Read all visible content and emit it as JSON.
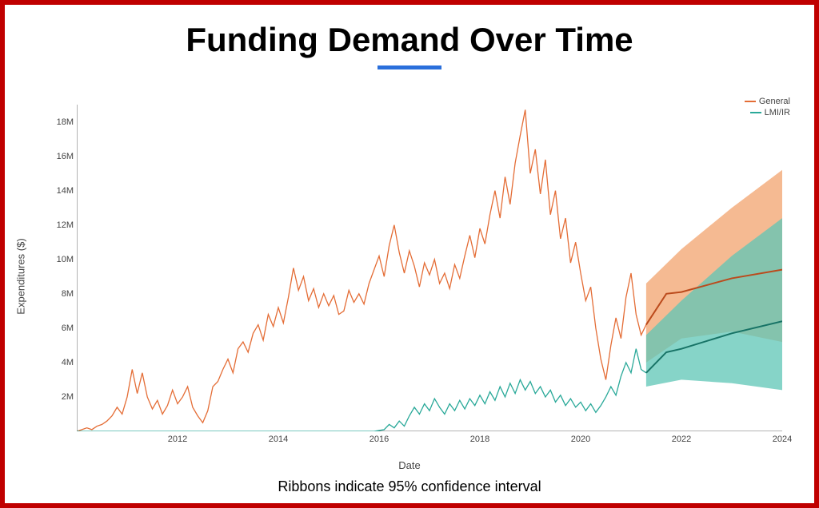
{
  "title": "Funding Demand Over Time",
  "caption": "Ribbons indicate 95% confidence interval",
  "xlabel": "Date",
  "ylabel": "Expenditures ($)",
  "legend": [
    {
      "label": "General",
      "color": "#e46d36"
    },
    {
      "label": "LMI/IR",
      "color": "#2aa999"
    }
  ],
  "chart": {
    "type": "line-with-ci",
    "background_color": "#ffffff",
    "axis_color": "#666666",
    "tick_font_size": 11,
    "x": {
      "min": 2010.0,
      "max": 2024.0,
      "ticks": [
        2012,
        2014,
        2016,
        2018,
        2020,
        2022,
        2024
      ]
    },
    "y": {
      "min": 0,
      "max": 19,
      "ticks": [
        2,
        4,
        6,
        8,
        10,
        12,
        14,
        16,
        18
      ],
      "tick_labels": [
        "2M",
        "4M",
        "6M",
        "8M",
        "10M",
        "12M",
        "14M",
        "16M",
        "18M"
      ]
    },
    "forecast_start": 2021.3,
    "series": {
      "general": {
        "color": "#e46d36",
        "ribbon_color": "#f2a36e",
        "ribbon_opacity": 0.75,
        "line_width": 1.3,
        "points": [
          [
            2010.0,
            0.0
          ],
          [
            2010.1,
            0.1
          ],
          [
            2010.2,
            0.2
          ],
          [
            2010.3,
            0.1
          ],
          [
            2010.4,
            0.3
          ],
          [
            2010.5,
            0.4
          ],
          [
            2010.6,
            0.6
          ],
          [
            2010.7,
            0.9
          ],
          [
            2010.8,
            1.4
          ],
          [
            2010.9,
            1.0
          ],
          [
            2011.0,
            2.0
          ],
          [
            2011.1,
            3.6
          ],
          [
            2011.2,
            2.2
          ],
          [
            2011.3,
            3.4
          ],
          [
            2011.4,
            2.0
          ],
          [
            2011.5,
            1.3
          ],
          [
            2011.6,
            1.8
          ],
          [
            2011.7,
            1.0
          ],
          [
            2011.8,
            1.5
          ],
          [
            2011.9,
            2.4
          ],
          [
            2012.0,
            1.6
          ],
          [
            2012.1,
            2.0
          ],
          [
            2012.2,
            2.6
          ],
          [
            2012.3,
            1.4
          ],
          [
            2012.4,
            0.9
          ],
          [
            2012.5,
            0.5
          ],
          [
            2012.6,
            1.2
          ],
          [
            2012.7,
            2.6
          ],
          [
            2012.8,
            2.9
          ],
          [
            2012.9,
            3.6
          ],
          [
            2013.0,
            4.2
          ],
          [
            2013.1,
            3.4
          ],
          [
            2013.2,
            4.8
          ],
          [
            2013.3,
            5.2
          ],
          [
            2013.4,
            4.6
          ],
          [
            2013.5,
            5.7
          ],
          [
            2013.6,
            6.2
          ],
          [
            2013.7,
            5.3
          ],
          [
            2013.8,
            6.8
          ],
          [
            2013.9,
            6.1
          ],
          [
            2014.0,
            7.2
          ],
          [
            2014.1,
            6.3
          ],
          [
            2014.2,
            7.8
          ],
          [
            2014.3,
            9.5
          ],
          [
            2014.4,
            8.2
          ],
          [
            2014.5,
            9.0
          ],
          [
            2014.6,
            7.6
          ],
          [
            2014.7,
            8.3
          ],
          [
            2014.8,
            7.2
          ],
          [
            2014.9,
            8.0
          ],
          [
            2015.0,
            7.3
          ],
          [
            2015.1,
            7.9
          ],
          [
            2015.2,
            6.8
          ],
          [
            2015.3,
            7.0
          ],
          [
            2015.4,
            8.2
          ],
          [
            2015.5,
            7.5
          ],
          [
            2015.6,
            8.0
          ],
          [
            2015.7,
            7.4
          ],
          [
            2015.8,
            8.6
          ],
          [
            2015.9,
            9.4
          ],
          [
            2016.0,
            10.2
          ],
          [
            2016.1,
            9.0
          ],
          [
            2016.2,
            10.8
          ],
          [
            2016.3,
            12.0
          ],
          [
            2016.4,
            10.4
          ],
          [
            2016.5,
            9.2
          ],
          [
            2016.6,
            10.5
          ],
          [
            2016.7,
            9.6
          ],
          [
            2016.8,
            8.4
          ],
          [
            2016.9,
            9.8
          ],
          [
            2017.0,
            9.1
          ],
          [
            2017.1,
            10.0
          ],
          [
            2017.2,
            8.6
          ],
          [
            2017.3,
            9.2
          ],
          [
            2017.4,
            8.3
          ],
          [
            2017.5,
            9.7
          ],
          [
            2017.6,
            8.9
          ],
          [
            2017.7,
            10.2
          ],
          [
            2017.8,
            11.4
          ],
          [
            2017.9,
            10.1
          ],
          [
            2018.0,
            11.8
          ],
          [
            2018.1,
            10.9
          ],
          [
            2018.2,
            12.6
          ],
          [
            2018.3,
            14.0
          ],
          [
            2018.4,
            12.4
          ],
          [
            2018.5,
            14.8
          ],
          [
            2018.6,
            13.2
          ],
          [
            2018.7,
            15.6
          ],
          [
            2018.8,
            17.2
          ],
          [
            2018.9,
            18.7
          ],
          [
            2019.0,
            15.0
          ],
          [
            2019.1,
            16.4
          ],
          [
            2019.2,
            13.8
          ],
          [
            2019.3,
            15.8
          ],
          [
            2019.4,
            12.6
          ],
          [
            2019.5,
            14.0
          ],
          [
            2019.6,
            11.2
          ],
          [
            2019.7,
            12.4
          ],
          [
            2019.8,
            9.8
          ],
          [
            2019.9,
            11.0
          ],
          [
            2020.0,
            9.2
          ],
          [
            2020.1,
            7.6
          ],
          [
            2020.2,
            8.4
          ],
          [
            2020.3,
            6.0
          ],
          [
            2020.4,
            4.2
          ],
          [
            2020.5,
            3.0
          ],
          [
            2020.6,
            5.0
          ],
          [
            2020.7,
            6.6
          ],
          [
            2020.8,
            5.4
          ],
          [
            2020.9,
            7.8
          ],
          [
            2021.0,
            9.2
          ],
          [
            2021.1,
            6.8
          ],
          [
            2021.2,
            5.6
          ],
          [
            2021.3,
            6.2
          ]
        ],
        "forecast_line": [
          [
            2021.3,
            6.2
          ],
          [
            2021.7,
            8.0
          ],
          [
            2022.0,
            8.1
          ],
          [
            2023.0,
            8.9
          ],
          [
            2024.0,
            9.4
          ]
        ],
        "forecast_upper": [
          [
            2021.3,
            8.6
          ],
          [
            2022.0,
            10.6
          ],
          [
            2023.0,
            13.0
          ],
          [
            2024.0,
            15.2
          ]
        ],
        "forecast_lower": [
          [
            2021.3,
            4.0
          ],
          [
            2022.0,
            5.4
          ],
          [
            2023.0,
            5.8
          ],
          [
            2024.0,
            5.2
          ]
        ]
      },
      "lmiir": {
        "color": "#2aa999",
        "ribbon_color": "#5ec5b5",
        "ribbon_opacity": 0.75,
        "line_width": 1.3,
        "points": [
          [
            2010.0,
            0.0
          ],
          [
            2015.8,
            0.0
          ],
          [
            2015.9,
            0.0
          ],
          [
            2016.0,
            0.05
          ],
          [
            2016.1,
            0.1
          ],
          [
            2016.2,
            0.4
          ],
          [
            2016.3,
            0.2
          ],
          [
            2016.4,
            0.6
          ],
          [
            2016.5,
            0.3
          ],
          [
            2016.6,
            0.9
          ],
          [
            2016.7,
            1.4
          ],
          [
            2016.8,
            1.0
          ],
          [
            2016.9,
            1.6
          ],
          [
            2017.0,
            1.2
          ],
          [
            2017.1,
            1.9
          ],
          [
            2017.2,
            1.4
          ],
          [
            2017.3,
            1.0
          ],
          [
            2017.4,
            1.6
          ],
          [
            2017.5,
            1.2
          ],
          [
            2017.6,
            1.8
          ],
          [
            2017.7,
            1.3
          ],
          [
            2017.8,
            1.9
          ],
          [
            2017.9,
            1.5
          ],
          [
            2018.0,
            2.1
          ],
          [
            2018.1,
            1.6
          ],
          [
            2018.2,
            2.3
          ],
          [
            2018.3,
            1.8
          ],
          [
            2018.4,
            2.6
          ],
          [
            2018.5,
            2.0
          ],
          [
            2018.6,
            2.8
          ],
          [
            2018.7,
            2.2
          ],
          [
            2018.8,
            3.0
          ],
          [
            2018.9,
            2.4
          ],
          [
            2019.0,
            2.9
          ],
          [
            2019.1,
            2.2
          ],
          [
            2019.2,
            2.6
          ],
          [
            2019.3,
            2.0
          ],
          [
            2019.4,
            2.4
          ],
          [
            2019.5,
            1.7
          ],
          [
            2019.6,
            2.1
          ],
          [
            2019.7,
            1.5
          ],
          [
            2019.8,
            1.9
          ],
          [
            2019.9,
            1.4
          ],
          [
            2020.0,
            1.7
          ],
          [
            2020.1,
            1.2
          ],
          [
            2020.2,
            1.6
          ],
          [
            2020.3,
            1.1
          ],
          [
            2020.4,
            1.5
          ],
          [
            2020.5,
            2.0
          ],
          [
            2020.6,
            2.6
          ],
          [
            2020.7,
            2.1
          ],
          [
            2020.8,
            3.2
          ],
          [
            2020.9,
            4.0
          ],
          [
            2021.0,
            3.4
          ],
          [
            2021.1,
            4.8
          ],
          [
            2021.2,
            3.6
          ],
          [
            2021.3,
            3.4
          ]
        ],
        "forecast_line": [
          [
            2021.3,
            3.4
          ],
          [
            2021.7,
            4.6
          ],
          [
            2022.0,
            4.8
          ],
          [
            2023.0,
            5.7
          ],
          [
            2024.0,
            6.4
          ]
        ],
        "forecast_upper": [
          [
            2021.3,
            5.6
          ],
          [
            2022.0,
            7.6
          ],
          [
            2023.0,
            10.2
          ],
          [
            2024.0,
            12.4
          ]
        ],
        "forecast_lower": [
          [
            2021.3,
            2.6
          ],
          [
            2022.0,
            3.0
          ],
          [
            2023.0,
            2.8
          ],
          [
            2024.0,
            2.4
          ]
        ]
      }
    }
  },
  "frame_border_color": "#c00000",
  "title_underline_color": "#2a6fdb"
}
